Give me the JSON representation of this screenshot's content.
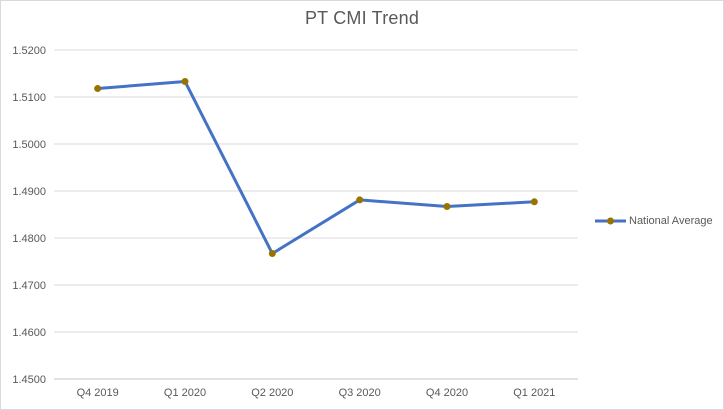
{
  "chart_data": {
    "type": "line",
    "title": "PT CMI Trend",
    "categories": [
      "Q4 2019",
      "Q1 2020",
      "Q2 2020",
      "Q3 2020",
      "Q4 2020",
      "Q1 2021"
    ],
    "series": [
      {
        "name": "National Average",
        "values": [
          1.5118,
          1.5133,
          1.4767,
          1.4881,
          1.4867,
          1.4877
        ]
      }
    ],
    "xlabel": "",
    "ylabel": "",
    "ylim": [
      1.45,
      1.52
    ],
    "ytick_step": 0.01,
    "ytick_decimals": 4,
    "grid": true,
    "legend_position": "right-middle",
    "colors": {
      "line": "#4472C4",
      "marker": "#997300",
      "gridline": "#D9D9D9",
      "axis_line": "#C6C6C6",
      "text": "#595959",
      "border": "#D9D9D9",
      "background": "#FFFFFF"
    }
  }
}
